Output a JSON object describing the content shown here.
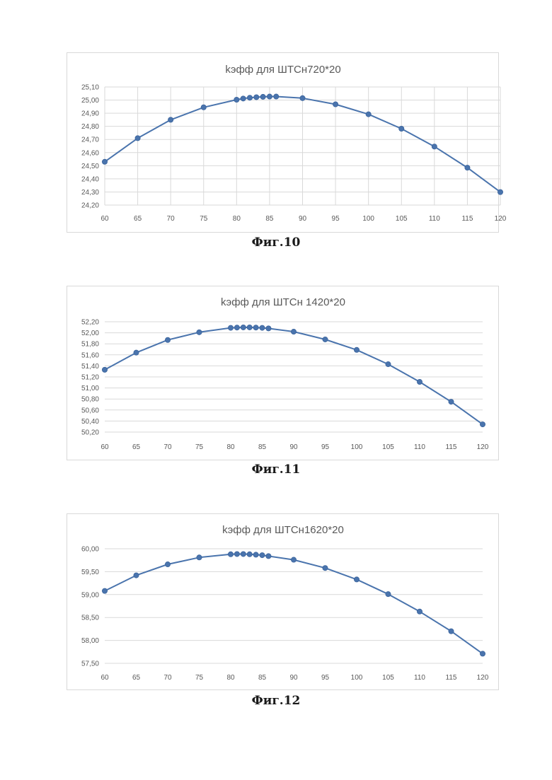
{
  "chart_data": [
    {
      "type": "line",
      "title": "kэфф  для ШТСн720*20",
      "caption": "Фиг.10",
      "xlabel": "",
      "ylabel": "",
      "xlim": [
        60,
        120
      ],
      "ylim": [
        24.2,
        25.1
      ],
      "xticks": [
        60,
        65,
        70,
        75,
        80,
        85,
        90,
        95,
        100,
        105,
        110,
        115,
        120
      ],
      "yticks": [
        24.2,
        24.3,
        24.4,
        24.5,
        24.6,
        24.7,
        24.8,
        24.9,
        25.0,
        25.1
      ],
      "ytick_labels": [
        "24,20",
        "24,30",
        "24,40",
        "24,50",
        "24,60",
        "24,70",
        "24,80",
        "24,90",
        "25,00",
        "25,10"
      ],
      "grid": "vertical",
      "color": "#4a74ad",
      "series": [
        {
          "x": [
            60,
            65,
            70,
            75,
            80,
            81,
            82,
            83,
            84,
            85,
            86,
            90,
            95,
            100,
            105,
            110,
            115,
            120
          ],
          "y": [
            24.53,
            24.71,
            24.85,
            24.945,
            25.003,
            25.012,
            25.018,
            25.022,
            25.025,
            25.027,
            25.027,
            25.015,
            24.968,
            24.892,
            24.782,
            24.646,
            24.485,
            24.299
          ]
        }
      ]
    },
    {
      "type": "line",
      "title": "kэфф для ШТСн 1420*20",
      "caption": "Фиг.11",
      "xlabel": "",
      "ylabel": "",
      "xlim": [
        60,
        120
      ],
      "ylim": [
        50.2,
        52.2
      ],
      "xticks": [
        60,
        65,
        70,
        75,
        80,
        85,
        90,
        95,
        100,
        105,
        110,
        115,
        120
      ],
      "yticks": [
        50.2,
        50.4,
        50.6,
        50.8,
        51.0,
        51.2,
        51.4,
        51.6,
        51.8,
        52.0,
        52.2
      ],
      "ytick_labels": [
        "50,20",
        "50,40",
        "50,60",
        "50,80",
        "51,00",
        "51,20",
        "51,40",
        "51,60",
        "51,80",
        "52,00",
        "52,20"
      ],
      "grid": "horizontal",
      "color": "#4a74ad",
      "series": [
        {
          "x": [
            60,
            65,
            70,
            75,
            80,
            81,
            82,
            83,
            84,
            85,
            86,
            90,
            95,
            100,
            105,
            110,
            115,
            120
          ],
          "y": [
            51.33,
            51.64,
            51.87,
            52.01,
            52.09,
            52.095,
            52.098,
            52.098,
            52.095,
            52.09,
            52.08,
            52.02,
            51.88,
            51.69,
            51.43,
            51.11,
            50.75,
            50.34
          ]
        }
      ]
    },
    {
      "type": "line",
      "title": "kэфф  для ШТСн1620*20",
      "caption": "Фиг.12",
      "xlabel": "",
      "ylabel": "",
      "xlim": [
        60,
        120
      ],
      "ylim": [
        57.5,
        60.0
      ],
      "xticks": [
        60,
        65,
        70,
        75,
        80,
        85,
        90,
        95,
        100,
        105,
        110,
        115,
        120
      ],
      "yticks": [
        57.5,
        58.0,
        58.5,
        59.0,
        59.5,
        60.0
      ],
      "ytick_labels": [
        "57,50",
        "58,00",
        "58,50",
        "59,00",
        "59,50",
        "60,00"
      ],
      "grid": "horizontal",
      "color": "#4a74ad",
      "series": [
        {
          "x": [
            60,
            65,
            70,
            75,
            80,
            81,
            82,
            83,
            84,
            85,
            86,
            90,
            95,
            100,
            105,
            110,
            115,
            120
          ],
          "y": [
            59.08,
            59.42,
            59.66,
            59.81,
            59.88,
            59.885,
            59.885,
            59.88,
            59.87,
            59.86,
            59.84,
            59.76,
            59.58,
            59.33,
            59.01,
            58.63,
            58.2,
            57.71
          ]
        }
      ]
    }
  ]
}
